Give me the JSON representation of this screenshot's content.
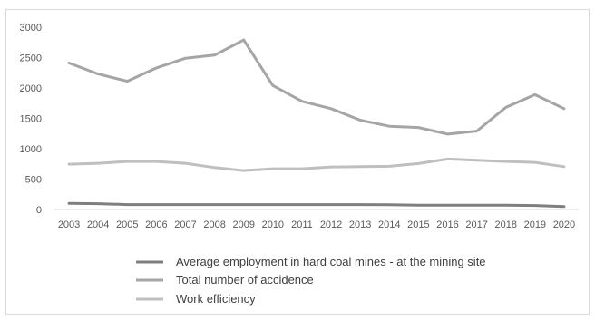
{
  "chart_data": {
    "type": "line",
    "title": "",
    "xlabel": "",
    "ylabel": "",
    "x": [
      "2003",
      "2004",
      "2005",
      "2006",
      "2007",
      "2008",
      "2009",
      "2010",
      "2011",
      "2012",
      "2013",
      "2014",
      "2015",
      "2016",
      "2017",
      "2018",
      "2019",
      "2020"
    ],
    "ylim": [
      0,
      3000
    ],
    "yticks": [
      0,
      500,
      1000,
      1500,
      2000,
      2500,
      3000
    ],
    "grid": false,
    "legend_position": "bottom",
    "series": [
      {
        "name": "Average employment in hard coal mines - at the mining site",
        "color": "#7f7f7f",
        "values": [
          100,
          95,
          80,
          80,
          80,
          80,
          80,
          80,
          80,
          80,
          80,
          78,
          70,
          70,
          70,
          70,
          65,
          50
        ]
      },
      {
        "name": "Total number of accidence",
        "color": "#a5a5a5",
        "values": [
          2410,
          2230,
          2110,
          2330,
          2490,
          2540,
          2790,
          2040,
          1780,
          1660,
          1470,
          1370,
          1350,
          1240,
          1290,
          1680,
          1890,
          1660
        ]
      },
      {
        "name": "Work efficiency",
        "color": "#bfbfbf",
        "values": [
          745,
          760,
          790,
          790,
          760,
          690,
          640,
          670,
          670,
          700,
          705,
          710,
          755,
          830,
          810,
          790,
          775,
          705
        ]
      }
    ]
  }
}
